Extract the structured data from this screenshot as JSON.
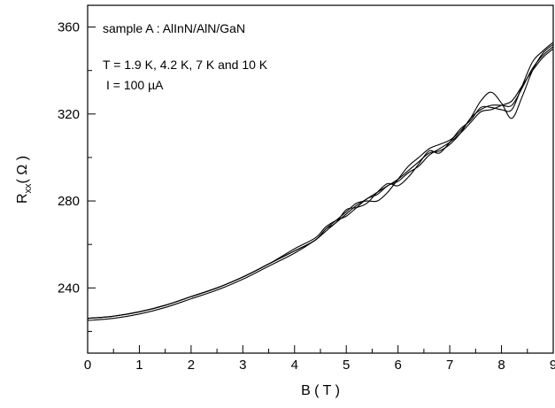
{
  "chart_data": {
    "type": "line",
    "xlabel": "B ( T )",
    "ylabel_main": "R",
    "ylabel_sub": "xx",
    "ylabel_unit": "( Ω )",
    "xlim": [
      0,
      9
    ],
    "ylim": [
      210,
      370
    ],
    "x_ticks": [
      0,
      1,
      2,
      3,
      4,
      5,
      6,
      7,
      8,
      9
    ],
    "x_tick_labels": [
      "0",
      "1",
      "2",
      "3",
      "4",
      "5",
      "6",
      "7",
      "8",
      "9"
    ],
    "y_ticks": [
      240,
      280,
      320,
      360
    ],
    "y_tick_labels": [
      "240",
      "280",
      "320",
      "360"
    ],
    "annotations": [
      "sample A : AlInN/AlN/GaN",
      "T = 1.9 K, 4.2 K, 7 K and 10 K",
      "I = 100 µA"
    ],
    "grid": false,
    "series": [
      {
        "x": [
          0,
          0.5,
          1,
          1.5,
          2,
          2.5,
          3,
          3.5,
          4,
          4.4,
          4.6,
          4.8,
          5,
          5.2,
          5.4,
          5.6,
          5.8,
          6,
          6.2,
          6.4,
          6.6,
          6.8,
          7,
          7.2,
          7.4,
          7.6,
          7.8,
          8,
          8.2,
          8.4,
          8.6,
          8.8,
          9
        ],
        "y": [
          226,
          227,
          229,
          232,
          236,
          240,
          245,
          251,
          257,
          262,
          267,
          271,
          275,
          279,
          280,
          280,
          284,
          290,
          296,
          300,
          304,
          306,
          308,
          312,
          318,
          326,
          330,
          325,
          318,
          328,
          340,
          348,
          352
        ]
      },
      {
        "x": [
          0,
          0.5,
          1,
          1.5,
          2,
          2.5,
          3,
          3.5,
          4,
          4.4,
          4.6,
          4.8,
          5,
          5.2,
          5.4,
          5.6,
          5.8,
          6,
          6.2,
          6.4,
          6.6,
          6.8,
          7,
          7.2,
          7.4,
          7.6,
          7.8,
          8,
          8.2,
          8.4,
          8.6,
          8.8,
          9
        ],
        "y": [
          225,
          226,
          228,
          231,
          235,
          239,
          244,
          250,
          256,
          262,
          266,
          270,
          274,
          278,
          281,
          284,
          287,
          290,
          294,
          298,
          302,
          303,
          306,
          311,
          318,
          322,
          324,
          324,
          324,
          332,
          341,
          347,
          351
        ]
      },
      {
        "x": [
          0,
          0.5,
          1,
          1.5,
          2,
          2.5,
          3,
          3.5,
          4,
          4.4,
          4.6,
          4.8,
          5,
          5.2,
          5.4,
          5.6,
          5.8,
          6,
          6.2,
          6.4,
          6.6,
          6.8,
          7,
          7.2,
          7.4,
          7.6,
          7.8,
          8,
          8.2,
          8.4,
          8.6,
          8.8,
          9
        ],
        "y": [
          226,
          227,
          229,
          232,
          236,
          240,
          245,
          251,
          258,
          263,
          268,
          271,
          273,
          277,
          281,
          283,
          287,
          289,
          293,
          296,
          301,
          304,
          307,
          311,
          316,
          321,
          322,
          324,
          326,
          333,
          340,
          346,
          350
        ]
      },
      {
        "x": [
          0,
          0.5,
          1,
          1.5,
          2,
          2.5,
          3,
          3.5,
          4,
          4.4,
          4.6,
          4.8,
          5,
          5.2,
          5.4,
          5.6,
          5.8,
          6,
          6.2,
          6.4,
          6.6,
          6.8,
          7,
          7.2,
          7.4,
          7.6,
          7.8,
          8,
          8.2,
          8.4,
          8.6,
          8.8,
          9
        ],
        "y": [
          226,
          227,
          229,
          232,
          236,
          240,
          245,
          251,
          257,
          262,
          267,
          270,
          276,
          277,
          279,
          284,
          288,
          287,
          291,
          297,
          303,
          302,
          307,
          313,
          317,
          323,
          323,
          322,
          322,
          333,
          344,
          349,
          353
        ]
      }
    ]
  }
}
